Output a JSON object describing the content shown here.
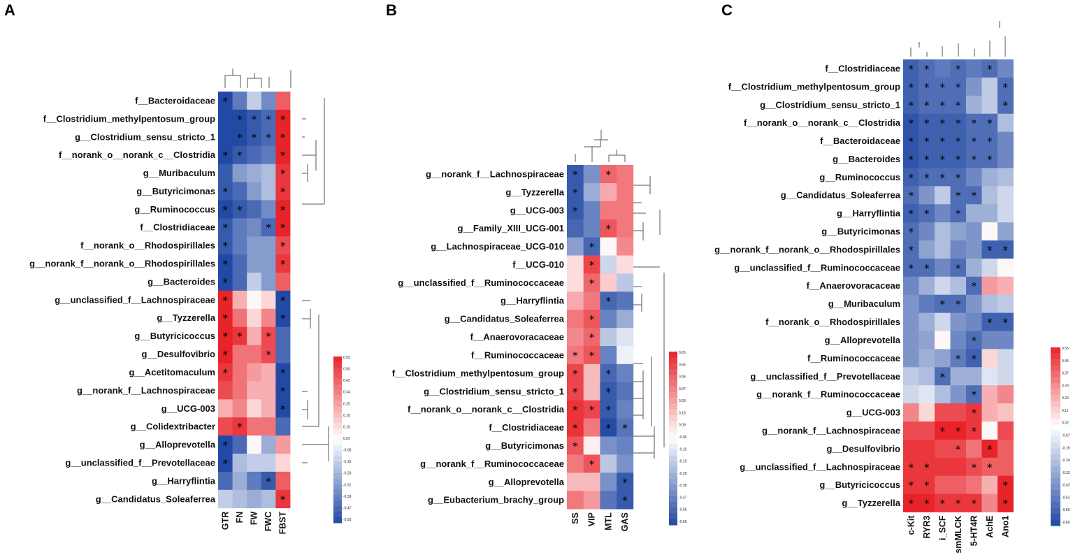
{
  "chart_data": [
    {
      "type": "heatmap",
      "panel_label": "A",
      "columns": [
        "GTR",
        "FN",
        "FW",
        "FWC",
        "FBST"
      ],
      "rows": [
        "f__Bacteroidaceae",
        "f__Clostridium_methylpentosum_group",
        "g__Clostridium_sensu_stricto_1",
        "f__norank_o__norank_c__Clostridia",
        "g__Muribaculum",
        "g__Butyricimonas",
        "g__Ruminococcus",
        "f__Clostridiaceae",
        "f__norank_o__Rhodospirillales",
        "g__norank_f__norank_o__Rhodospirillales",
        "g__Bacteroides",
        "g__unclassified_f__Lachnospiraceae",
        "g__Tyzzerella",
        "g__Butyricicoccus",
        "g__Desulfovibrio",
        "g__Acetitomaculum",
        "g__norank_f__Lachnospiraceae",
        "g__UCG-003",
        "g__Colidextribacter",
        "g__Alloprevotella",
        "g__unclassified_f__Prevotellaceae",
        "g__Harryflintia",
        "g__Candidatus_Soleaferrea"
      ],
      "values": [
        [
          -0.55,
          -0.4,
          -0.15,
          -0.35,
          0.4
        ],
        [
          -0.55,
          -0.55,
          -0.5,
          -0.45,
          0.55
        ],
        [
          -0.55,
          -0.55,
          -0.5,
          -0.45,
          0.55
        ],
        [
          -0.55,
          -0.5,
          -0.45,
          -0.4,
          0.55
        ],
        [
          -0.5,
          -0.3,
          -0.25,
          -0.2,
          0.5
        ],
        [
          -0.5,
          -0.45,
          -0.3,
          -0.2,
          0.5
        ],
        [
          -0.55,
          -0.5,
          -0.45,
          -0.35,
          0.55
        ],
        [
          -0.5,
          -0.4,
          -0.35,
          -0.45,
          0.55
        ],
        [
          -0.5,
          -0.4,
          -0.3,
          -0.3,
          0.45
        ],
        [
          -0.55,
          -0.45,
          -0.3,
          -0.3,
          0.5
        ],
        [
          -0.55,
          -0.45,
          -0.15,
          -0.3,
          0.4
        ],
        [
          0.55,
          0.2,
          0.02,
          0.1,
          -0.55
        ],
        [
          0.55,
          0.35,
          0.1,
          0.3,
          -0.55
        ],
        [
          0.55,
          0.5,
          0.2,
          0.45,
          -0.45
        ],
        [
          0.55,
          0.35,
          0.35,
          0.45,
          -0.45
        ],
        [
          0.5,
          0.35,
          0.25,
          0.2,
          -0.55
        ],
        [
          0.45,
          0.35,
          0.2,
          0.2,
          -0.55
        ],
        [
          0.2,
          0.3,
          0.1,
          0.2,
          -0.55
        ],
        [
          0.45,
          0.5,
          0.35,
          0.35,
          -0.45
        ],
        [
          -0.55,
          -0.45,
          0.02,
          -0.25,
          0.25
        ],
        [
          -0.55,
          -0.2,
          -0.15,
          -0.15,
          0.1
        ],
        [
          -0.45,
          -0.25,
          -0.4,
          -0.5,
          0.4
        ],
        [
          -0.15,
          -0.2,
          -0.25,
          -0.2,
          0.5
        ]
      ],
      "significance": [
        [
          1,
          0,
          0,
          0,
          0
        ],
        [
          0,
          1,
          1,
          1,
          1
        ],
        [
          0,
          1,
          1,
          1,
          1
        ],
        [
          1,
          1,
          0,
          0,
          1
        ],
        [
          0,
          0,
          0,
          0,
          1
        ],
        [
          1,
          0,
          0,
          0,
          1
        ],
        [
          1,
          1,
          0,
          0,
          1
        ],
        [
          1,
          0,
          0,
          1,
          1
        ],
        [
          1,
          0,
          0,
          0,
          1
        ],
        [
          1,
          0,
          0,
          0,
          1
        ],
        [
          1,
          0,
          0,
          0,
          0
        ],
        [
          1,
          0,
          0,
          0,
          1
        ],
        [
          1,
          0,
          0,
          0,
          1
        ],
        [
          1,
          1,
          0,
          1,
          0
        ],
        [
          1,
          0,
          0,
          1,
          0
        ],
        [
          1,
          0,
          0,
          0,
          1
        ],
        [
          0,
          0,
          0,
          0,
          1
        ],
        [
          0,
          0,
          0,
          0,
          1
        ],
        [
          0,
          1,
          0,
          0,
          0
        ],
        [
          1,
          0,
          0,
          0,
          0
        ],
        [
          1,
          0,
          0,
          0,
          0
        ],
        [
          0,
          0,
          0,
          1,
          0
        ],
        [
          0,
          0,
          0,
          0,
          1
        ]
      ],
      "legend_ticks": [
        "0.55",
        "0.50",
        "0.42",
        "0.34",
        "0.25",
        "0.18",
        "0.10",
        "0.02",
        "-0.06",
        "-0.15",
        "-0.23",
        "-0.31",
        "-0.39",
        "-0.47",
        "-0.55"
      ],
      "color_range": [
        -0.55,
        0.55
      ]
    },
    {
      "type": "heatmap",
      "panel_label": "B",
      "columns": [
        "SS",
        "VIP",
        "MTL",
        "GAS"
      ],
      "rows": [
        "g__norank_f__Lachnospiraceae",
        "g__Tyzzerella",
        "g__UCG-003",
        "g__Family_XIII_UCG-001",
        "g__Lachnospiraceae_UCG-010",
        "f__UCG-010",
        "g__unclassified_f__Ruminococcaceae",
        "g__Harryflintia",
        "g__Candidatus_Soleaferrea",
        "f__Anaerovoracaceae",
        "f__Ruminococcaceae",
        "f__Clostridium_methylpentosum_group",
        "g__Clostridium_sensu_stricto_1",
        "f__norank_o__norank_c__Clostridia",
        "f__Clostridiaceae",
        "g__Butyricimonas",
        "g__norank_f__Ruminococcaceae",
        "g__Alloprevotella",
        "g__Eubacterium_brachy_group"
      ],
      "values": [
        [
          -0.6,
          -0.4,
          0.45,
          0.4
        ],
        [
          -0.6,
          -0.3,
          0.25,
          0.4
        ],
        [
          -0.6,
          -0.45,
          0.4,
          0.4
        ],
        [
          -0.55,
          -0.45,
          0.5,
          0.4
        ],
        [
          -0.35,
          -0.55,
          0.02,
          0.35
        ],
        [
          0.1,
          0.55,
          -0.15,
          0.1
        ],
        [
          0.1,
          0.45,
          0.15,
          -0.2
        ],
        [
          0.25,
          0.4,
          -0.55,
          -0.5
        ],
        [
          0.4,
          0.5,
          -0.45,
          -0.3
        ],
        [
          0.35,
          0.45,
          -0.2,
          -0.1
        ],
        [
          0.4,
          0.5,
          -0.45,
          -0.05
        ],
        [
          0.55,
          0.2,
          -0.55,
          -0.45
        ],
        [
          0.55,
          0.2,
          -0.6,
          -0.5
        ],
        [
          0.6,
          0.55,
          -0.6,
          -0.45
        ],
        [
          0.6,
          0.4,
          -0.65,
          -0.5
        ],
        [
          0.5,
          0.05,
          -0.4,
          -0.45
        ],
        [
          0.4,
          0.5,
          -0.2,
          -0.4
        ],
        [
          0.2,
          0.2,
          -0.4,
          -0.6
        ],
        [
          0.4,
          0.3,
          -0.5,
          -0.6
        ]
      ],
      "significance": [
        [
          1,
          0,
          1,
          0
        ],
        [
          1,
          0,
          0,
          0
        ],
        [
          1,
          0,
          0,
          0
        ],
        [
          0,
          0,
          1,
          0
        ],
        [
          0,
          1,
          0,
          0
        ],
        [
          0,
          1,
          0,
          0
        ],
        [
          0,
          1,
          0,
          0
        ],
        [
          0,
          0,
          1,
          0
        ],
        [
          0,
          1,
          0,
          0
        ],
        [
          0,
          1,
          0,
          0
        ],
        [
          1,
          1,
          0,
          0
        ],
        [
          1,
          0,
          1,
          0
        ],
        [
          1,
          0,
          1,
          0
        ],
        [
          1,
          1,
          1,
          0
        ],
        [
          1,
          0,
          1,
          1
        ],
        [
          1,
          0,
          0,
          0
        ],
        [
          0,
          1,
          0,
          0
        ],
        [
          0,
          0,
          0,
          1
        ],
        [
          0,
          0,
          0,
          1
        ]
      ],
      "legend_ticks": [
        "0.65",
        "0.56",
        "0.46",
        "0.37",
        "0.28",
        "0.18",
        "0.09",
        "-0.00",
        "-0.10",
        "-0.19",
        "-0.28",
        "-0.38",
        "-0.47",
        "-0.56",
        "-0.66"
      ],
      "color_range": [
        -0.66,
        0.65
      ]
    },
    {
      "type": "heatmap",
      "panel_label": "C",
      "columns": [
        "c-Kit",
        "RYR3",
        "i_SCF",
        "smMLCK",
        "5-HT4R",
        "AchE",
        "Ano1"
      ],
      "rows": [
        "f__Clostridiaceae",
        "f__Clostridium_methylpentosum_group",
        "g__Clostridium_sensu_stricto_1",
        "f__norank_o__norank_c__Clostridia",
        "f__Bacteroidaceae",
        "g__Bacteroides",
        "g__Ruminococcus",
        "g__Candidatus_Soleaferrea",
        "g__Harryflintia",
        "g__Butyricimonas",
        "g__norank_f__norank_o__Rhodospirillales",
        "g__unclassified_f__Ruminococcaceae",
        "f__Anaerovoracaceae",
        "g__Muribaculum",
        "f__norank_o__Rhodospirillales",
        "g__Alloprevotella",
        "f__Ruminococcaceae",
        "g__unclassified_f__Prevotellaceae",
        "g__norank_f__Ruminococcaceae",
        "g__UCG-003",
        "g__norank_f__Lachnospiraceae",
        "g__Desulfovibrio",
        "g__unclassified_f__Lachnospiraceae",
        "g__Butyricicoccus",
        "g__Tyzzerella"
      ],
      "values": [
        [
          -0.6,
          -0.55,
          -0.5,
          -0.55,
          -0.5,
          -0.55,
          -0.45
        ],
        [
          -0.6,
          -0.55,
          -0.55,
          -0.55,
          -0.4,
          -0.2,
          -0.55
        ],
        [
          -0.6,
          -0.55,
          -0.55,
          -0.55,
          -0.3,
          -0.2,
          -0.55
        ],
        [
          -0.65,
          -0.6,
          -0.6,
          -0.6,
          -0.55,
          -0.55,
          -0.25
        ],
        [
          -0.65,
          -0.6,
          -0.6,
          -0.6,
          -0.55,
          -0.55,
          -0.45
        ],
        [
          -0.65,
          -0.6,
          -0.6,
          -0.6,
          -0.55,
          -0.55,
          -0.45
        ],
        [
          -0.6,
          -0.55,
          -0.55,
          -0.55,
          -0.45,
          -0.3,
          -0.25
        ],
        [
          -0.55,
          -0.4,
          -0.2,
          -0.55,
          -0.55,
          -0.25,
          -0.15
        ],
        [
          -0.6,
          -0.55,
          -0.45,
          -0.55,
          -0.3,
          -0.3,
          -0.15
        ],
        [
          -0.55,
          -0.45,
          -0.25,
          -0.35,
          -0.4,
          0.02,
          -0.35
        ],
        [
          -0.55,
          -0.35,
          -0.25,
          -0.45,
          -0.4,
          -0.6,
          -0.6
        ],
        [
          -0.55,
          -0.55,
          -0.45,
          -0.55,
          -0.3,
          -0.15,
          0.02
        ],
        [
          -0.45,
          -0.3,
          -0.15,
          -0.25,
          -0.55,
          0.25,
          0.2
        ],
        [
          -0.4,
          -0.5,
          -0.55,
          -0.55,
          -0.4,
          -0.25,
          -0.2
        ],
        [
          -0.4,
          -0.3,
          -0.15,
          -0.4,
          -0.45,
          -0.6,
          -0.6
        ],
        [
          -0.4,
          -0.35,
          0.02,
          -0.45,
          -0.55,
          -0.45,
          -0.45
        ],
        [
          -0.4,
          -0.3,
          -0.35,
          -0.5,
          -0.6,
          0.1,
          -0.15
        ],
        [
          -0.2,
          -0.25,
          -0.55,
          -0.3,
          -0.3,
          -0.1,
          -0.15
        ],
        [
          -0.15,
          -0.1,
          -0.25,
          -0.4,
          -0.55,
          0.2,
          0.3
        ],
        [
          0.3,
          0.1,
          0.45,
          0.45,
          0.5,
          0.2,
          0.15
        ],
        [
          0.45,
          0.45,
          0.55,
          0.55,
          0.5,
          0.02,
          0.45
        ],
        [
          0.5,
          0.5,
          0.45,
          0.45,
          0.35,
          0.55,
          0.4
        ],
        [
          0.5,
          0.5,
          0.5,
          0.5,
          0.45,
          0.4,
          0.4
        ],
        [
          0.5,
          0.5,
          0.4,
          0.4,
          0.35,
          0.2,
          0.55
        ],
        [
          0.55,
          0.55,
          0.5,
          0.5,
          0.5,
          0.3,
          0.55
        ]
      ],
      "significance": [
        [
          1,
          1,
          0,
          1,
          0,
          1,
          0
        ],
        [
          1,
          1,
          1,
          1,
          0,
          0,
          1
        ],
        [
          1,
          1,
          1,
          1,
          0,
          0,
          1
        ],
        [
          1,
          1,
          1,
          1,
          1,
          1,
          0
        ],
        [
          1,
          1,
          1,
          1,
          1,
          1,
          0
        ],
        [
          1,
          1,
          1,
          1,
          1,
          1,
          0
        ],
        [
          1,
          1,
          1,
          1,
          0,
          0,
          0
        ],
        [
          1,
          0,
          0,
          1,
          1,
          0,
          0
        ],
        [
          1,
          1,
          0,
          1,
          0,
          0,
          0
        ],
        [
          1,
          0,
          0,
          0,
          0,
          0,
          0
        ],
        [
          1,
          0,
          0,
          0,
          0,
          1,
          1
        ],
        [
          1,
          1,
          0,
          1,
          0,
          0,
          0
        ],
        [
          0,
          0,
          0,
          0,
          1,
          0,
          0
        ],
        [
          0,
          0,
          1,
          1,
          0,
          0,
          0
        ],
        [
          0,
          0,
          0,
          0,
          0,
          1,
          1
        ],
        [
          0,
          0,
          0,
          0,
          1,
          0,
          0
        ],
        [
          0,
          0,
          0,
          1,
          1,
          0,
          0
        ],
        [
          0,
          0,
          1,
          0,
          0,
          0,
          0
        ],
        [
          0,
          0,
          0,
          0,
          1,
          0,
          0
        ],
        [
          0,
          0,
          0,
          0,
          1,
          0,
          0
        ],
        [
          0,
          0,
          1,
          1,
          1,
          0,
          0
        ],
        [
          0,
          0,
          0,
          1,
          0,
          1,
          0
        ],
        [
          1,
          1,
          0,
          0,
          1,
          1,
          0
        ],
        [
          1,
          1,
          0,
          0,
          0,
          0,
          1
        ],
        [
          1,
          1,
          1,
          1,
          1,
          0,
          1
        ]
      ],
      "legend_ticks": [
        "0.55",
        "0.46",
        "0.37",
        "0.29",
        "0.20",
        "0.11",
        "0.02",
        "-0.07",
        "-0.16",
        "-0.24",
        "-0.33",
        "-0.42",
        "-0.51",
        "-0.60",
        "-0.69"
      ],
      "color_range": [
        -0.69,
        0.55
      ]
    }
  ],
  "colors": {
    "high": "#e8232a",
    "mid": "#ffffff",
    "low": "#2249a4",
    "star": "#000000"
  }
}
